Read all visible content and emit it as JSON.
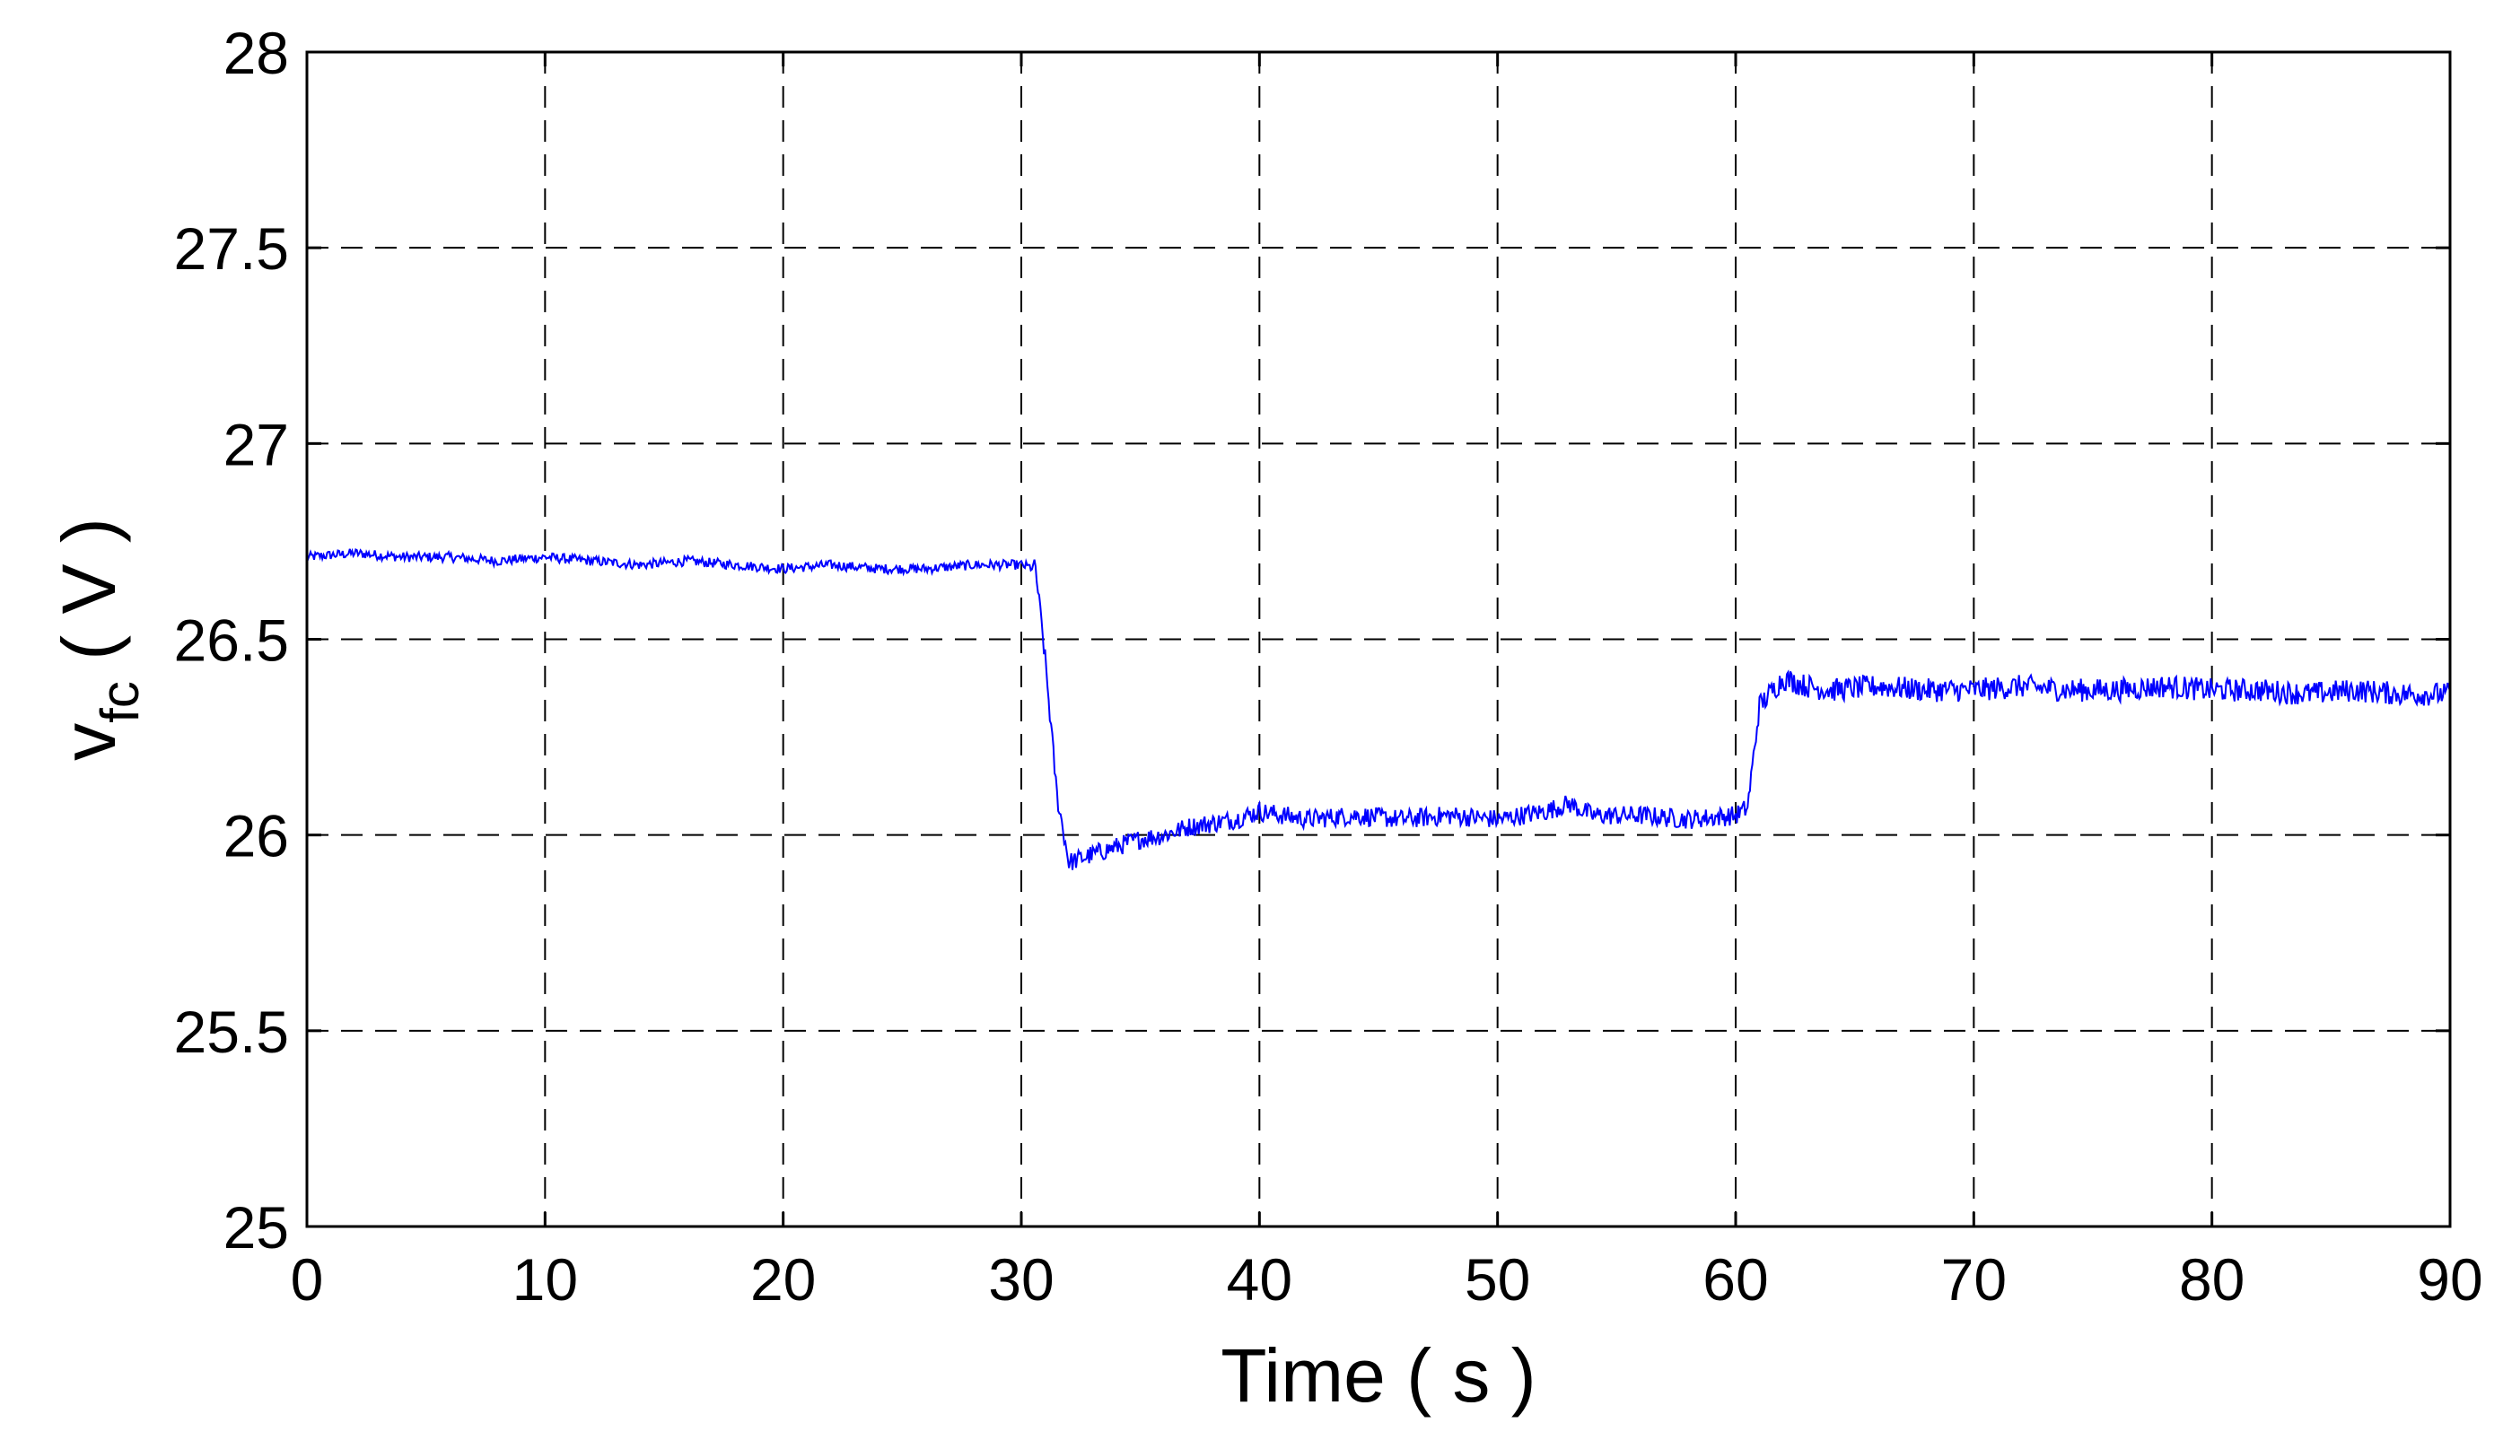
{
  "chart_data": {
    "type": "line",
    "title": "",
    "xlabel": "Time ( s )",
    "ylabel_main": "v",
    "ylabel_sub": "fc",
    "ylabel_unit": " ( V )",
    "xlim": [
      0,
      90
    ],
    "ylim": [
      25,
      28
    ],
    "xticks": [
      0,
      10,
      20,
      30,
      40,
      50,
      60,
      70,
      80,
      90
    ],
    "yticks": [
      25,
      25.5,
      26,
      26.5,
      27,
      27.5,
      28
    ],
    "xtick_labels": [
      "0",
      "10",
      "20",
      "30",
      "40",
      "50",
      "60",
      "70",
      "80",
      "90"
    ],
    "ytick_labels": [
      "25",
      "25.5",
      "26",
      "26.5",
      "27",
      "27.5",
      "28"
    ],
    "grid": true,
    "series": [
      {
        "color": "#0000ff",
        "x": [
          0,
          2,
          4,
          6,
          8,
          10,
          12,
          14,
          16,
          18,
          20,
          22,
          24,
          26,
          28,
          30,
          30.6,
          31,
          31.5,
          32,
          33,
          34,
          35,
          36,
          37,
          38,
          39,
          40,
          41,
          42,
          44,
          46,
          48,
          50,
          52,
          53,
          54,
          56,
          58,
          60,
          60.5,
          61,
          62,
          63,
          64,
          66,
          68,
          70,
          72,
          74,
          76,
          78,
          80,
          82,
          84,
          86,
          88,
          90
        ],
        "y": [
          26.71,
          26.72,
          26.71,
          26.71,
          26.7,
          26.71,
          26.7,
          26.69,
          26.7,
          26.69,
          26.68,
          26.69,
          26.68,
          26.68,
          26.69,
          26.69,
          26.68,
          26.45,
          26.1,
          25.93,
          25.95,
          25.97,
          25.99,
          26.0,
          26.02,
          26.03,
          26.04,
          26.06,
          26.05,
          26.04,
          26.05,
          26.04,
          26.05,
          26.04,
          26.06,
          26.08,
          26.05,
          26.05,
          26.04,
          26.05,
          26.07,
          26.33,
          26.4,
          26.38,
          26.37,
          26.38,
          26.37,
          26.37,
          26.38,
          26.37,
          26.37,
          26.38,
          26.37,
          26.37,
          26.36,
          26.37,
          26.36,
          26.36
        ]
      }
    ]
  }
}
